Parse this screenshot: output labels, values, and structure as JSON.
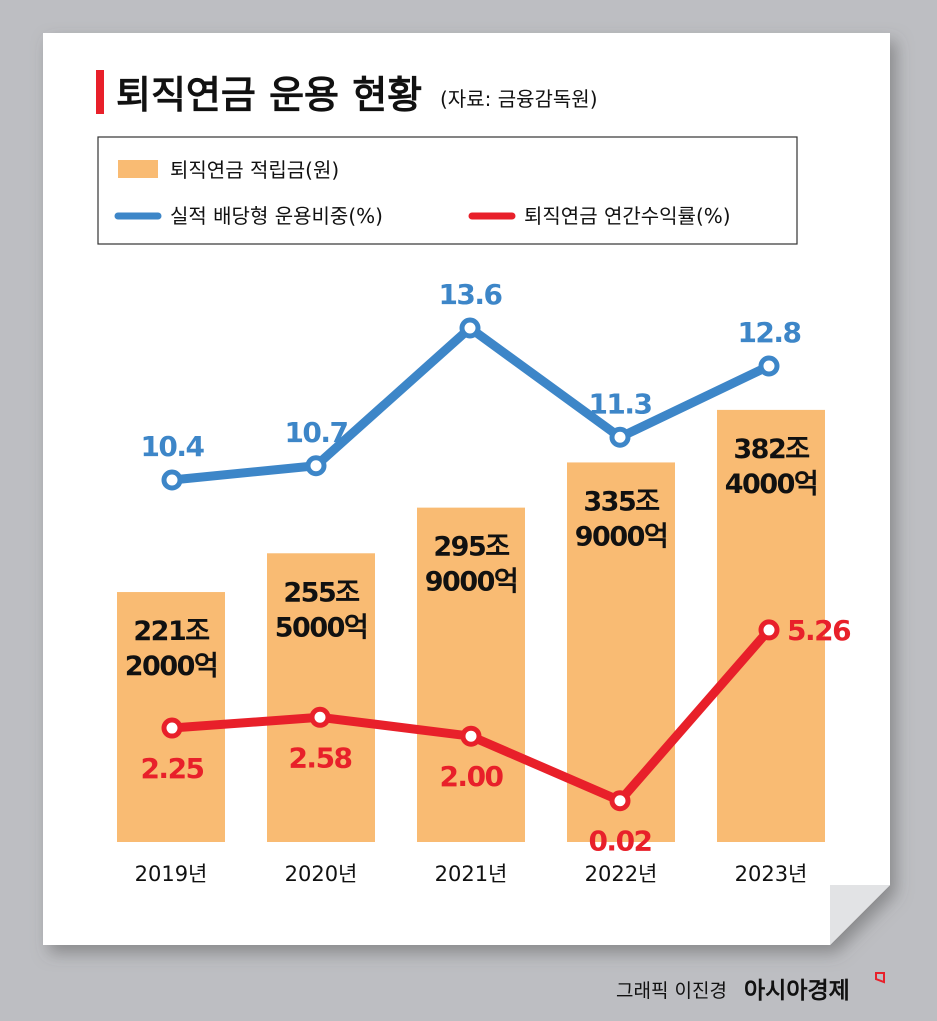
{
  "title": "퇴직연금 운용 현황",
  "source": "(자료: 금융감독원)",
  "credit": {
    "artist": "그래픽 이진경",
    "brand": "아시아경제"
  },
  "colors": {
    "bar": "#f9bb73",
    "blue": "#3d86c8",
    "red": "#e8202a",
    "accent": "#e8202a"
  },
  "chart_data": {
    "type": "bar+line",
    "categories": [
      "2019년",
      "2020년",
      "2021년",
      "2022년",
      "2023년"
    ],
    "legend_placement": "top",
    "grid": false,
    "series": [
      {
        "name": "퇴직연금 적립금(원)",
        "type": "bar",
        "values": [
          221.2,
          255.5,
          295.9,
          335.9,
          382.4
        ],
        "unit": "조",
        "labels": [
          [
            "221조",
            "2000억"
          ],
          [
            "255조",
            "5000억"
          ],
          [
            "295조",
            "9000억"
          ],
          [
            "335조",
            "9000억"
          ],
          [
            "382조",
            "4000억"
          ]
        ]
      },
      {
        "name": "실적 배당형 운용비중(%)",
        "type": "line",
        "values": [
          10.4,
          10.7,
          13.6,
          11.3,
          12.8
        ],
        "labels": [
          "10.4",
          "10.7",
          "13.6",
          "11.3",
          "12.8"
        ]
      },
      {
        "name": "퇴직연금 연간수익률(%)",
        "type": "line",
        "values": [
          2.25,
          2.58,
          2.0,
          0.02,
          5.26
        ],
        "labels": [
          "2.25",
          "2.58",
          "2.00",
          "0.02",
          "5.26"
        ]
      }
    ]
  }
}
